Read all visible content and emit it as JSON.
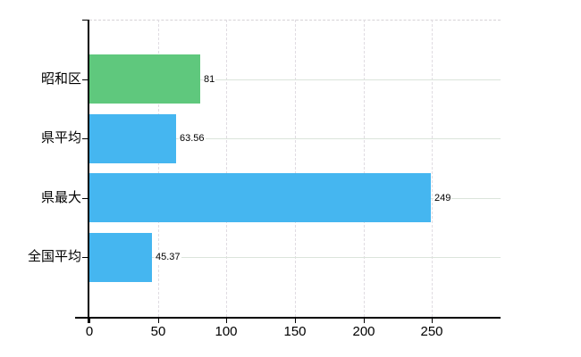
{
  "chart_data": {
    "type": "bar",
    "orientation": "horizontal",
    "categories": [
      "昭和区",
      "県平均",
      "県最大",
      "全国平均"
    ],
    "values": [
      81,
      63.56,
      249,
      45.37
    ],
    "value_labels": [
      "81",
      "63.56",
      "249",
      "45.37"
    ],
    "bar_colors": [
      "#5fc87d",
      "#45b6f0",
      "#45b6f0",
      "#45b6f0"
    ],
    "xlim": [
      0,
      300
    ],
    "xticks": [
      0,
      50,
      100,
      150,
      200,
      250
    ],
    "xtick_labels": [
      "0",
      "50",
      "100",
      "150",
      "200",
      "250"
    ],
    "grid": true,
    "legend": "none",
    "title": "",
    "colors": {
      "accent_green": "#5fc87d",
      "accent_blue": "#45b6f0",
      "vertical_grid": "#e0dce2",
      "horizontal_grid": "#dbe4db",
      "plot_top_border": "#d6d2d6",
      "axis": "#000000",
      "text": "#000000",
      "background": "#ffffff"
    }
  }
}
